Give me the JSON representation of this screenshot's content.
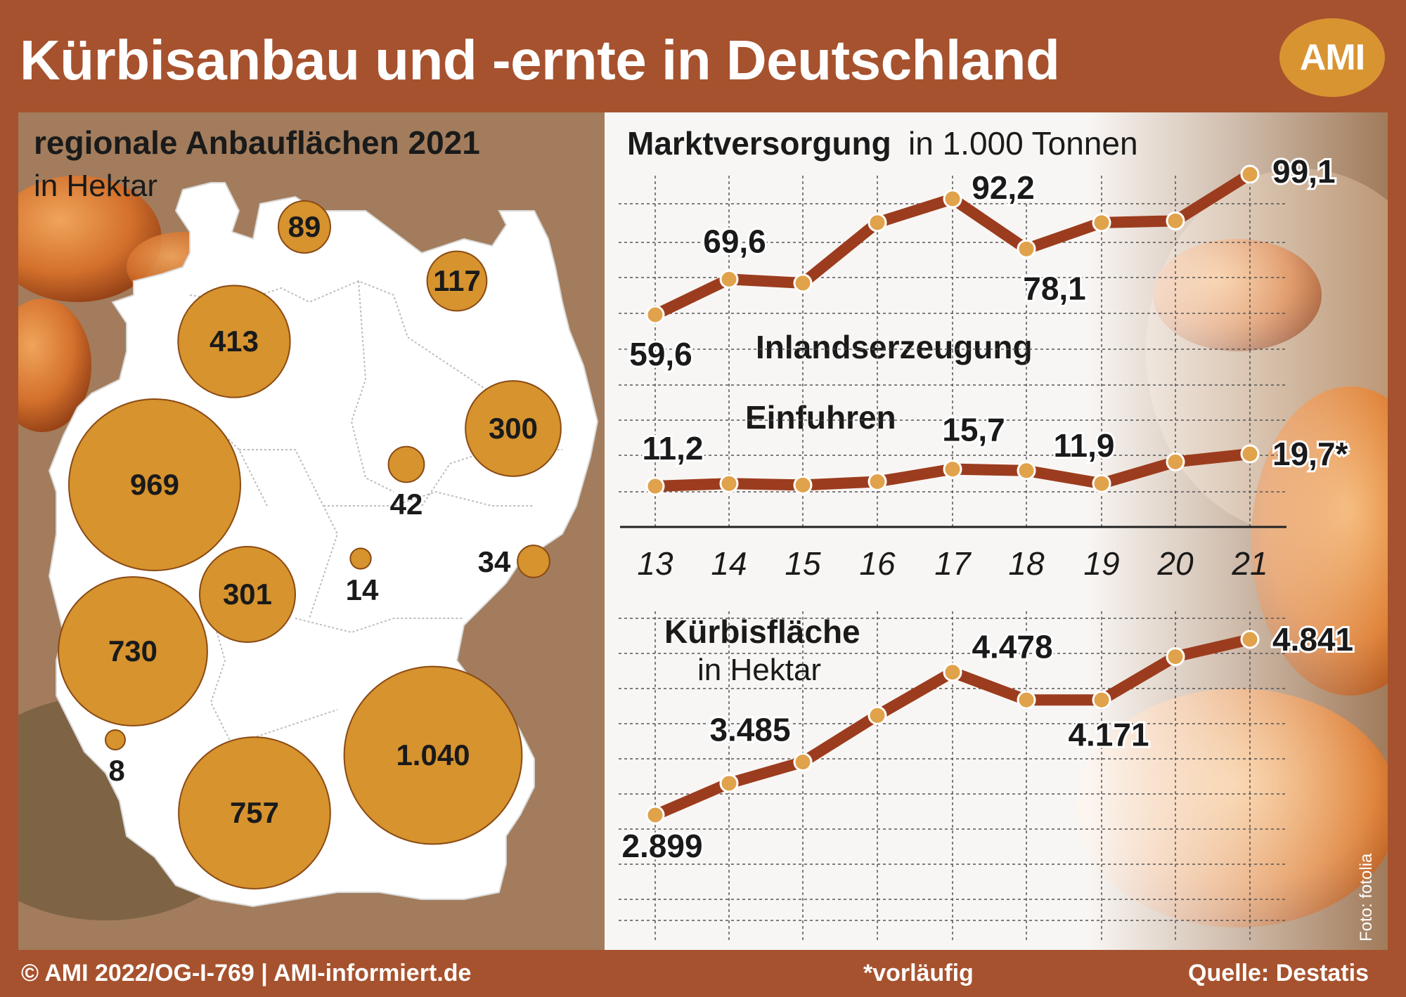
{
  "header": {
    "title": "Kürbisanbau und -ernte in Deutschland",
    "logo": "AMI"
  },
  "map": {
    "title": "regionale Anbauflächen 2021",
    "unit": "in Hektar",
    "bubbles": [
      {
        "region": "Schleswig-Holstein",
        "label": "89",
        "value": 89
      },
      {
        "region": "Mecklenburg-Vorpommern",
        "label": "117",
        "value": 117
      },
      {
        "region": "Niedersachsen",
        "label": "413",
        "value": 413
      },
      {
        "region": "Nordrhein-Westfalen",
        "label": "969",
        "value": 969
      },
      {
        "region": "Brandenburg",
        "label": "300",
        "value": 300
      },
      {
        "region": "Sachsen-Anhalt",
        "label": "42",
        "value": 42
      },
      {
        "region": "Hessen",
        "label": "301",
        "value": 301
      },
      {
        "region": "Thüringen",
        "label": "14",
        "value": 14
      },
      {
        "region": "Sachsen",
        "label": "34",
        "value": 34
      },
      {
        "region": "Rheinland-Pfalz",
        "label": "730",
        "value": 730
      },
      {
        "region": "Saarland",
        "label": "8",
        "value": 8
      },
      {
        "region": "Bayern",
        "label": "1.040",
        "value": 1040
      },
      {
        "region": "Baden-Württemberg",
        "label": "757",
        "value": 757
      }
    ]
  },
  "chart_data": [
    {
      "type": "line",
      "title": "Marktversorgung",
      "subtitle": "in 1.000 Tonnen",
      "x": [
        "13",
        "14",
        "15",
        "16",
        "17",
        "18",
        "19",
        "20",
        "21"
      ],
      "series": [
        {
          "name": "Inlandserzeugung",
          "values": [
            59.6,
            69.6,
            68.5,
            85.5,
            92.2,
            78.1,
            85.5,
            86.0,
            99.1
          ],
          "labels": [
            "59,6",
            "69,6",
            "",
            "",
            "92,2",
            "78,1",
            "",
            "",
            "99,1"
          ]
        },
        {
          "name": "Einfuhren",
          "values": [
            11.2,
            11.9,
            11.5,
            12.4,
            15.7,
            15.3,
            11.9,
            17.6,
            19.7
          ],
          "labels": [
            "11,2",
            "",
            "",
            "",
            "15,7",
            "",
            "11,9",
            "",
            "19,7*"
          ]
        }
      ]
    },
    {
      "type": "line",
      "title": "Kürbisfläche",
      "subtitle": "in Hektar",
      "x": [
        "13",
        "14",
        "15",
        "16",
        "17",
        "18",
        "19",
        "20",
        "21"
      ],
      "series": [
        {
          "name": "Kürbisfläche",
          "values": [
            2899,
            3250,
            3485,
            4000,
            4478,
            4171,
            4171,
            4650,
            4841
          ],
          "labels": [
            "2.899",
            "",
            "3.485",
            "",
            "4.478",
            "",
            "4.171",
            "",
            "4.841"
          ]
        }
      ]
    }
  ],
  "footer": {
    "copyright": "© AMI 2022/OG-I-769 | AMI-informiert.de",
    "note": "*vorläufig",
    "source": "Quelle: Destatis",
    "photo_credit": "Foto: fotolia"
  },
  "colors": {
    "frame": "#a6522e",
    "line": "#9c3c1e",
    "bubble": "#d6932e",
    "bubble_stroke": "#8a4a14",
    "logo": "#d99432"
  }
}
